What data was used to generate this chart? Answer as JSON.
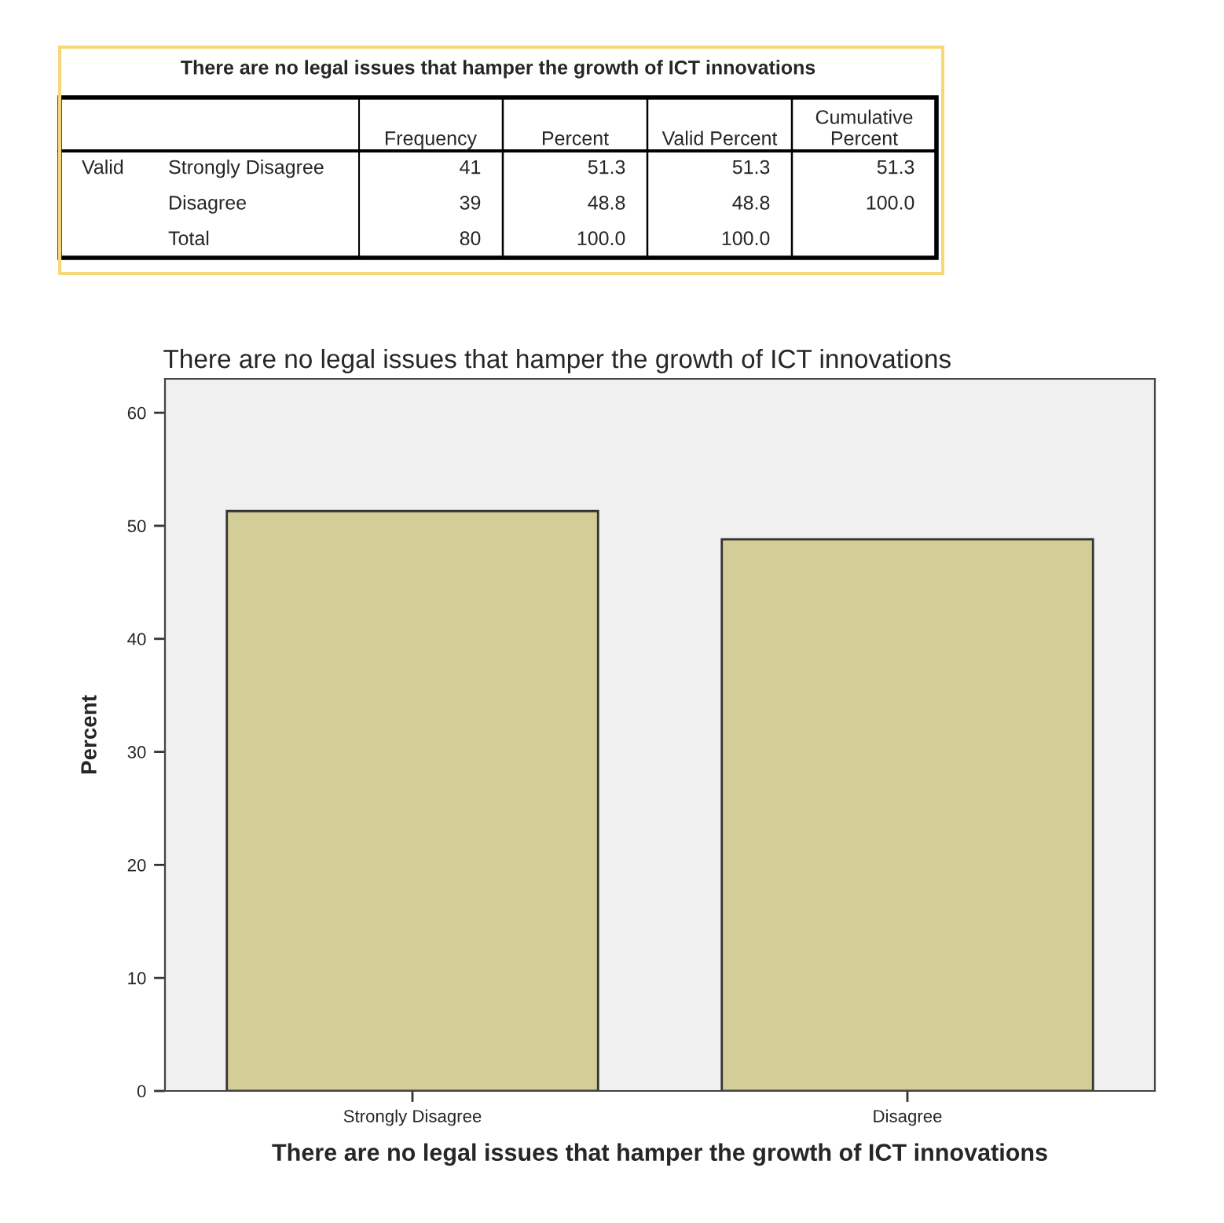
{
  "chart_data": [
    {
      "type": "heatmap",
      "title": "There are no legal issues that hamper the growth of ICT innovations",
      "categories": [
        "Frequency",
        "Percent",
        "Valid Percent",
        "Cumulative\nPercent"
      ],
      "y_categories": [
        "Strongly Disagree",
        "Disagree",
        "Total"
      ],
      "cells": [
        [
          41,
          51.3,
          51.3,
          51.3
        ],
        [
          39,
          48.8,
          48.8,
          100.0
        ],
        [
          80,
          100.0,
          100.0,
          null
        ]
      ],
      "data_labels": true,
      "cell_labels": [
        [
          "41",
          "51.3",
          "51.3",
          "51.3"
        ],
        [
          "39",
          "48.8",
          "48.8",
          "100.0"
        ],
        [
          "80",
          "100.0",
          "100.0",
          null
        ]
      ],
      "annotations": [
        "Valid"
      ]
    },
    {
      "type": "bar",
      "title": "There are no legal issues that hamper the growth of ICT innovations",
      "xlabel": "There are no legal issues that hamper the growth of ICT innovations",
      "ylabel": "Percent",
      "categories": [
        "Strongly Disagree",
        "Disagree"
      ],
      "values": [
        51.3,
        48.8
      ],
      "color": "#d3ce97",
      "ylim": [
        0,
        63
      ],
      "yticks": [
        0,
        10,
        20,
        30,
        40,
        50,
        60
      ],
      "grid": false
    }
  ]
}
